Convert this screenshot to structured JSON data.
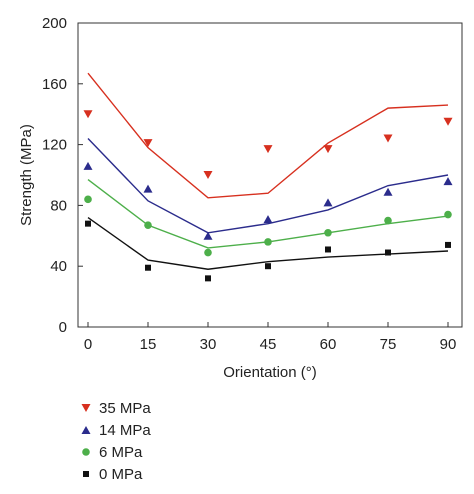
{
  "chart_data": {
    "type": "scatter",
    "xlabel": "Orientation (°)",
    "ylabel": "Strength (MPa)",
    "xlim": [
      0,
      90
    ],
    "ylim": [
      0,
      200
    ],
    "x_ticks": [
      0,
      15,
      30,
      45,
      60,
      75,
      90
    ],
    "y_ticks": [
      0,
      40,
      80,
      120,
      160,
      200
    ],
    "legend_position": "bottom-left",
    "series": [
      {
        "name": "35 MPa",
        "color": "#d7301f",
        "marker": "triangle-down",
        "points_x": [
          0,
          15,
          30,
          45,
          60,
          75,
          90
        ],
        "points_y": [
          140,
          121,
          100,
          117,
          117,
          124,
          135
        ],
        "line_x": [
          0,
          15,
          30,
          45,
          60,
          75,
          90
        ],
        "line_y": [
          167,
          118,
          85,
          88,
          121,
          144,
          146
        ]
      },
      {
        "name": "14 MPa",
        "color": "#2b2c8c",
        "marker": "triangle-up",
        "points_x": [
          0,
          15,
          30,
          45,
          60,
          75,
          90
        ],
        "points_y": [
          106,
          91,
          60,
          71,
          82,
          89,
          96
        ],
        "line_x": [
          0,
          15,
          30,
          45,
          60,
          75,
          90
        ],
        "line_y": [
          124,
          83,
          62,
          68,
          77,
          93,
          100
        ]
      },
      {
        "name": "6 MPa",
        "color": "#4daf4a",
        "marker": "circle",
        "points_x": [
          0,
          15,
          30,
          45,
          60,
          75,
          90
        ],
        "points_y": [
          84,
          67,
          49,
          56,
          62,
          70,
          74
        ],
        "line_x": [
          0,
          15,
          30,
          45,
          60,
          75,
          90
        ],
        "line_y": [
          97,
          67,
          52,
          56,
          62,
          68,
          73
        ]
      },
      {
        "name": "0 MPa",
        "color": "#111111",
        "marker": "square",
        "points_x": [
          0,
          15,
          30,
          45,
          60,
          75,
          90
        ],
        "points_y": [
          68,
          39,
          32,
          40,
          51,
          49,
          54
        ],
        "line_x": [
          0,
          15,
          30,
          45,
          60,
          75,
          90
        ],
        "line_y": [
          72,
          44,
          38,
          43,
          46,
          48,
          50
        ]
      }
    ]
  }
}
